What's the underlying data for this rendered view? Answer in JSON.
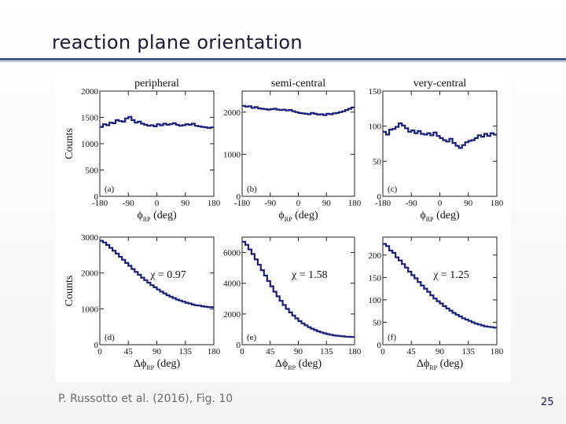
{
  "slide": {
    "title": "reaction plane orientation",
    "citation": "P. Russotto et al. (2016), Fig. 10",
    "page_number": "25"
  },
  "colors": {
    "line": "#1c1f7a",
    "axis": "#222222",
    "rule": "#3c5a87"
  },
  "chart_data": [
    {
      "type": "line",
      "id": "a",
      "title": "peripheral",
      "panel_label": "(a)",
      "xlabel": "ϕ",
      "xlabel_sub": "RP",
      "xlabel_unit": "(deg)",
      "ylabel": "Counts",
      "xlim": [
        -180,
        180
      ],
      "ylim": [
        0,
        2000
      ],
      "xticks": [
        "-180",
        "-90",
        "0",
        "90",
        "180"
      ],
      "yticks": [
        "0",
        "500",
        "1000",
        "1500",
        "2000"
      ],
      "x": [
        -180,
        -170,
        -160,
        -150,
        -140,
        -130,
        -120,
        -110,
        -100,
        -90,
        -80,
        -70,
        -60,
        -50,
        -40,
        -30,
        -20,
        -10,
        0,
        10,
        20,
        30,
        40,
        50,
        60,
        70,
        80,
        90,
        100,
        110,
        120,
        130,
        140,
        150,
        160,
        170
      ],
      "values": [
        1320,
        1370,
        1350,
        1400,
        1390,
        1450,
        1430,
        1420,
        1480,
        1510,
        1450,
        1400,
        1420,
        1380,
        1360,
        1340,
        1350,
        1330,
        1370,
        1350,
        1380,
        1360,
        1370,
        1390,
        1360,
        1340,
        1350,
        1370,
        1360,
        1380,
        1340,
        1330,
        1320,
        1310,
        1300,
        1310
      ],
      "annotation": ""
    },
    {
      "type": "line",
      "id": "b",
      "title": "semi-central",
      "panel_label": "(b)",
      "xlabel": "ϕ",
      "xlabel_sub": "RP",
      "xlabel_unit": "(deg)",
      "ylabel": "",
      "xlim": [
        -180,
        180
      ],
      "ylim": [
        0,
        2500
      ],
      "xticks": [
        "-180",
        "-90",
        "0",
        "90",
        "180"
      ],
      "yticks": [
        "0",
        "1000",
        "2000"
      ],
      "x": [
        -180,
        -170,
        -160,
        -150,
        -140,
        -130,
        -120,
        -110,
        -100,
        -90,
        -80,
        -70,
        -60,
        -50,
        -40,
        -30,
        -20,
        -10,
        0,
        10,
        20,
        30,
        40,
        50,
        60,
        70,
        80,
        90,
        100,
        110,
        120,
        130,
        140,
        150,
        160,
        170
      ],
      "values": [
        2150,
        2130,
        2140,
        2100,
        2120,
        2090,
        2080,
        2070,
        2060,
        2070,
        2080,
        2060,
        2050,
        2060,
        2040,
        2050,
        2020,
        2000,
        1980,
        1970,
        1960,
        1950,
        1980,
        1960,
        1940,
        1950,
        1930,
        1960,
        1950,
        1970,
        1980,
        2000,
        2020,
        2050,
        2080,
        2110
      ],
      "annotation": ""
    },
    {
      "type": "line",
      "id": "c",
      "title": "very-central",
      "panel_label": "(c)",
      "xlabel": "ϕ",
      "xlabel_sub": "RP",
      "xlabel_unit": "(deg)",
      "ylabel": "",
      "xlim": [
        -180,
        180
      ],
      "ylim": [
        0,
        150
      ],
      "xticks": [
        "-180",
        "-90",
        "0",
        "90",
        "180"
      ],
      "yticks": [
        "0",
        "50",
        "100",
        "150"
      ],
      "x": [
        -180,
        -170,
        -160,
        -150,
        -140,
        -130,
        -120,
        -110,
        -100,
        -90,
        -80,
        -70,
        -60,
        -50,
        -40,
        -30,
        -20,
        -10,
        0,
        10,
        20,
        30,
        40,
        50,
        60,
        70,
        80,
        90,
        100,
        110,
        120,
        130,
        140,
        150,
        160,
        170
      ],
      "values": [
        92,
        88,
        95,
        96,
        99,
        104,
        101,
        97,
        92,
        94,
        90,
        93,
        89,
        88,
        90,
        87,
        91,
        86,
        83,
        80,
        78,
        82,
        76,
        72,
        69,
        73,
        77,
        79,
        80,
        83,
        87,
        85,
        89,
        86,
        90,
        88
      ],
      "annotation": ""
    },
    {
      "type": "line",
      "id": "d",
      "title": "",
      "panel_label": "(d)",
      "xlabel": "Δϕ",
      "xlabel_sub": "RP",
      "xlabel_unit": "(deg)",
      "ylabel": "Counts",
      "xlim": [
        0,
        180
      ],
      "ylim": [
        0,
        3000
      ],
      "xticks": [
        "0",
        "45",
        "90",
        "135",
        "180"
      ],
      "yticks": [
        "0",
        "1000",
        "2000",
        "3000"
      ],
      "x": [
        0,
        5,
        10,
        15,
        20,
        25,
        30,
        35,
        40,
        45,
        50,
        55,
        60,
        65,
        70,
        75,
        80,
        85,
        90,
        95,
        100,
        105,
        110,
        115,
        120,
        125,
        130,
        135,
        140,
        145,
        150,
        155,
        160,
        165,
        170,
        175
      ],
      "values": [
        2900,
        2850,
        2780,
        2700,
        2620,
        2540,
        2450,
        2370,
        2280,
        2200,
        2110,
        2030,
        1950,
        1870,
        1800,
        1730,
        1660,
        1600,
        1540,
        1480,
        1430,
        1380,
        1340,
        1300,
        1260,
        1230,
        1200,
        1170,
        1150,
        1120,
        1100,
        1090,
        1070,
        1060,
        1050,
        1050
      ],
      "annotation": "χ = 0.97"
    },
    {
      "type": "line",
      "id": "e",
      "title": "",
      "panel_label": "(e)",
      "xlabel": "Δϕ",
      "xlabel_sub": "RP",
      "xlabel_unit": "(deg)",
      "ylabel": "",
      "xlim": [
        0,
        180
      ],
      "ylim": [
        0,
        7000
      ],
      "xticks": [
        "0",
        "45",
        "90",
        "135",
        "180"
      ],
      "yticks": [
        "0",
        "2000",
        "4000",
        "6000"
      ],
      "x": [
        0,
        5,
        10,
        15,
        20,
        25,
        30,
        35,
        40,
        45,
        50,
        55,
        60,
        65,
        70,
        75,
        80,
        85,
        90,
        95,
        100,
        105,
        110,
        115,
        120,
        125,
        130,
        135,
        140,
        145,
        150,
        155,
        160,
        165,
        170,
        175
      ],
      "values": [
        6700,
        6500,
        6200,
        5900,
        5550,
        5200,
        4850,
        4500,
        4150,
        3800,
        3450,
        3150,
        2850,
        2580,
        2330,
        2100,
        1900,
        1710,
        1540,
        1390,
        1260,
        1140,
        1040,
        950,
        870,
        800,
        740,
        690,
        650,
        610,
        580,
        560,
        540,
        520,
        510,
        500
      ],
      "annotation": "χ = 1.58"
    },
    {
      "type": "line",
      "id": "f",
      "title": "",
      "panel_label": "(f)",
      "xlabel": "Δϕ",
      "xlabel_sub": "RP",
      "xlabel_unit": "(deg)",
      "ylabel": "",
      "xlim": [
        0,
        180
      ],
      "ylim": [
        0,
        240
      ],
      "xticks": [
        "0",
        "45",
        "90",
        "135",
        "180"
      ],
      "yticks": [
        "0",
        "50",
        "100",
        "150",
        "200"
      ],
      "x": [
        0,
        5,
        10,
        15,
        20,
        25,
        30,
        35,
        40,
        45,
        50,
        55,
        60,
        65,
        70,
        75,
        80,
        85,
        90,
        95,
        100,
        105,
        110,
        115,
        120,
        125,
        130,
        135,
        140,
        145,
        150,
        155,
        160,
        165,
        170,
        175
      ],
      "values": [
        225,
        220,
        210,
        205,
        195,
        188,
        180,
        172,
        163,
        155,
        148,
        140,
        132,
        125,
        118,
        110,
        103,
        97,
        92,
        86,
        81,
        76,
        71,
        67,
        63,
        59,
        56,
        53,
        50,
        47,
        45,
        43,
        41,
        40,
        39,
        38
      ],
      "annotation": "χ = 1.25"
    }
  ]
}
